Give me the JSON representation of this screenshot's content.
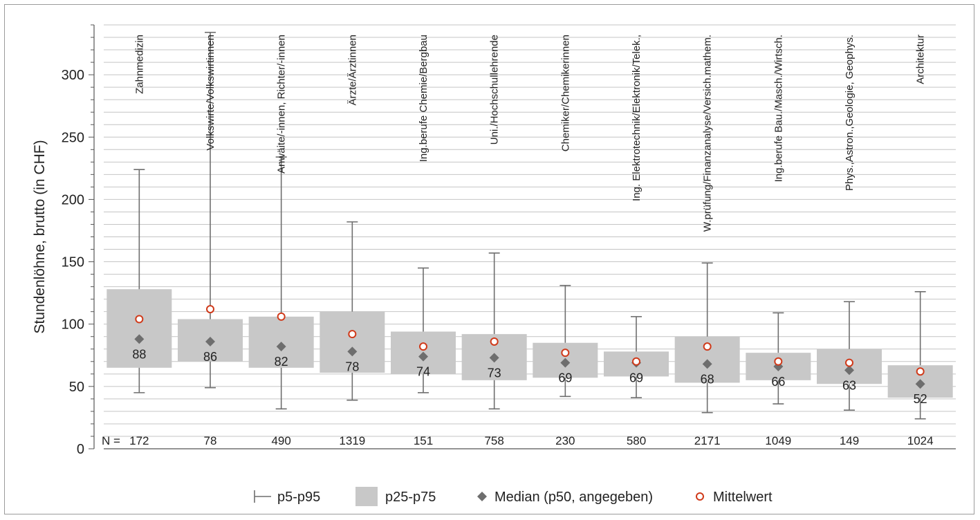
{
  "chart_data": {
    "type": "boxplot",
    "ylabel": "Stundenlöhne, brutto (in CHF)",
    "ylim": [
      0,
      340
    ],
    "yticks": [
      0,
      50,
      100,
      150,
      200,
      250,
      300
    ],
    "grid": true,
    "n_prefix": "N =",
    "categories": [
      "Zahnmedizin",
      "Volkswirte/Volkswirtinnen",
      "Anwäite/-innen, Richter/-innen",
      "Ärzte/Ärztinnen",
      "Ing.berufe Chemie/Bergbau",
      "Uni./Hochschullehrende",
      "Chemiker/Chemikerinnen",
      "Ing. Elektrotechnik/Elektronik/Telek.,",
      "W.prüfung/Finanzanalyse/Versich.mathem.",
      "Ing.berufe Bau./Masch./Wirtsch.",
      "Phys.,Astron.,Geologie, Geophys.",
      "Architektur"
    ],
    "n": [
      "172",
      "78",
      "490",
      "1319",
      "151",
      "758",
      "230",
      "580",
      "2171",
      "1049",
      "149",
      "1024"
    ],
    "p5": [
      45,
      49,
      32,
      39,
      45,
      32,
      42,
      41,
      29,
      36,
      31,
      24
    ],
    "p25": [
      65,
      70,
      65,
      61,
      60,
      55,
      57,
      58,
      53,
      55,
      52,
      41
    ],
    "p50": [
      88,
      86,
      82,
      78,
      74,
      73,
      69,
      69,
      68,
      66,
      63,
      52
    ],
    "p75": [
      128,
      104,
      106,
      110,
      94,
      92,
      85,
      78,
      90,
      77,
      80,
      67
    ],
    "p95": [
      224,
      334,
      234,
      182,
      145,
      157,
      131,
      106,
      149,
      109,
      118,
      126
    ],
    "mean": [
      104,
      112,
      106,
      92,
      82,
      86,
      77,
      70,
      82,
      70,
      69,
      62
    ],
    "legend": {
      "position": "bottom",
      "items": [
        {
          "key": "whisker",
          "label": "p5-p95"
        },
        {
          "key": "box",
          "label": "p25-p75"
        },
        {
          "key": "median",
          "label": "Median (p50, angegeben)"
        },
        {
          "key": "mean",
          "label": "Mittelwert"
        }
      ]
    },
    "colors": {
      "box": "#c8c8c8",
      "whisker": "#6e6e6e",
      "median": "#6e6e6e",
      "mean_stroke": "#d03a1a",
      "grid": "#c4c4c4",
      "axis": "#555555"
    }
  }
}
